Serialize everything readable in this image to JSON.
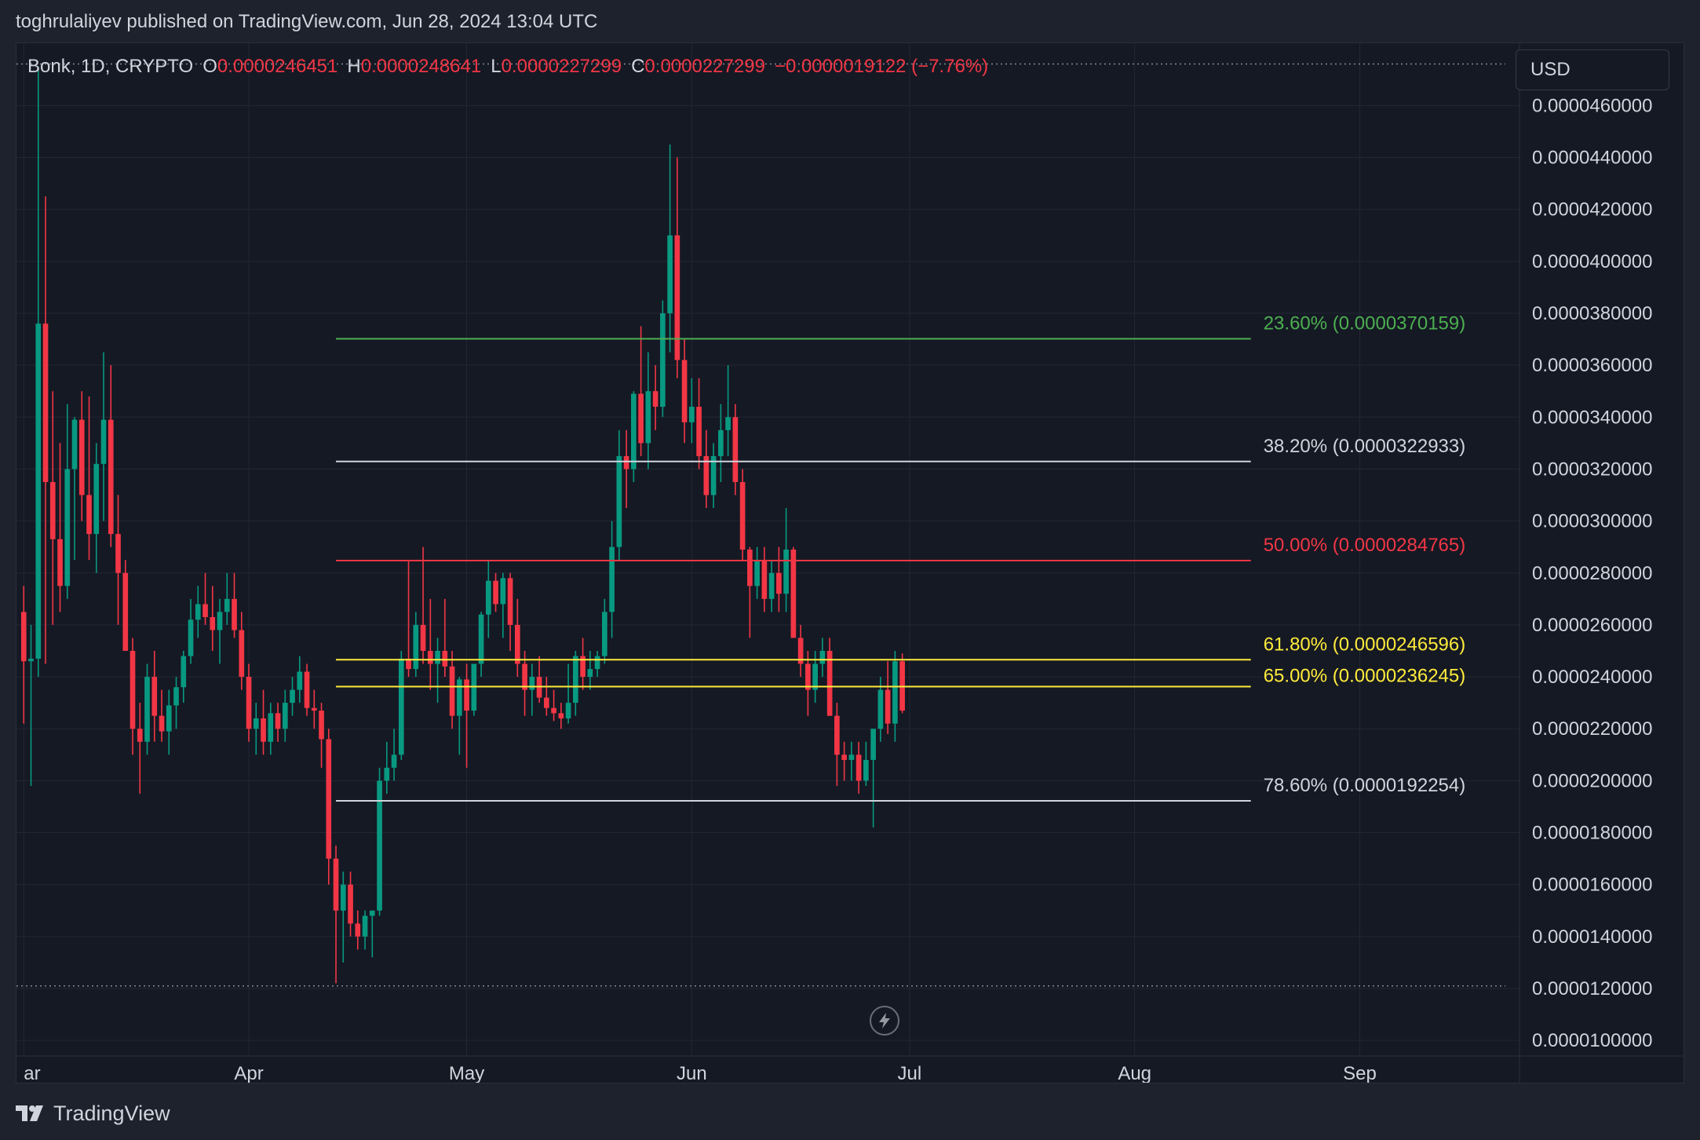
{
  "attribution": "toghrulaliyev published on TradingView.com, Jun 28, 2024 13:04 UTC",
  "legend": {
    "symbol": "Bonk, 1D, CRYPTO",
    "open_label": "O",
    "open": "0.0000246451",
    "high_label": "H",
    "high": "0.0000248641",
    "low_label": "L",
    "low": "0.0000227299",
    "close_label": "C",
    "close": "0.0000227299",
    "change": "−0.0000019122 (−7.76%)"
  },
  "currency": "USD",
  "brand": "TradingView",
  "replay_icon": "lightning-icon",
  "colors": {
    "background": "#151924",
    "up": "#089981",
    "down": "#f23645",
    "grid": "#232733",
    "axis_text": "#d1d4dc",
    "fib_23": "#4caf50",
    "fib_38": "#d1d4dc",
    "fib_50": "#f23645",
    "fib_618": "#ffeb3b",
    "fib_65": "#ffeb3b",
    "fib_786": "#d1d4dc"
  },
  "chart_data": {
    "type": "candlestick",
    "title": "Bonk, 1D, CRYPTO",
    "x_axis": {
      "tick_labels": [
        "ar",
        "Apr",
        "May",
        "Jun",
        "Jul",
        "Aug",
        "Sep"
      ],
      "tick_dates": [
        "2024-03-01",
        "2024-04-01",
        "2024-05-01",
        "2024-06-01",
        "2024-07-01",
        "2024-08-01",
        "2024-09-01"
      ],
      "range": [
        "2024-02-29",
        "2024-09-23"
      ]
    },
    "y_axis": {
      "ticks": [
        "0.0000100000",
        "0.0000120000",
        "0.0000140000",
        "0.0000160000",
        "0.0000180000",
        "0.0000200000",
        "0.0000220000",
        "0.0000240000",
        "0.0000260000",
        "0.0000280000",
        "0.0000300000",
        "0.0000320000",
        "0.0000340000",
        "0.0000360000",
        "0.0000380000",
        "0.0000400000",
        "0.0000420000",
        "0.0000440000",
        "0.0000460000"
      ],
      "range": [
        9.4e-06,
        4.84e-05
      ],
      "high_marker": 4.76e-05,
      "low_marker": 1.21e-05
    },
    "grid": true,
    "fibonacci": {
      "start_date": "2024-04-13",
      "end_date": "2024-08-17",
      "levels": [
        {
          "label": "23.60% (0.0000370159)",
          "value": 3.70159e-05,
          "color": "#4caf50"
        },
        {
          "label": "38.20% (0.0000322933)",
          "value": 3.22933e-05,
          "color": "#d1d4dc"
        },
        {
          "label": "50.00% (0.0000284765)",
          "value": 2.84765e-05,
          "color": "#f23645"
        },
        {
          "label": "61.80% (0.0000246596)",
          "value": 2.46596e-05,
          "color": "#ffeb3b"
        },
        {
          "label": "65.00% (0.0000236245)",
          "value": 2.36245e-05,
          "color": "#ffeb3b"
        },
        {
          "label": "78.60% (0.0000192254)",
          "value": 1.92254e-05,
          "color": "#d1d4dc"
        }
      ]
    },
    "candles": [
      {
        "date": "2024-03-01",
        "o": 26.5,
        "h": 27.5,
        "l": 22.2,
        "c": 24.6
      },
      {
        "date": "2024-03-02",
        "o": 24.6,
        "h": 26.0,
        "l": 19.8,
        "c": 24.7
      },
      {
        "date": "2024-03-03",
        "o": 24.7,
        "h": 47.5,
        "l": 24.0,
        "c": 37.6
      },
      {
        "date": "2024-03-04",
        "o": 37.6,
        "h": 42.5,
        "l": 24.5,
        "c": 31.5
      },
      {
        "date": "2024-03-05",
        "o": 31.5,
        "h": 35.0,
        "l": 26.0,
        "c": 29.3
      },
      {
        "date": "2024-03-06",
        "o": 29.3,
        "h": 33.0,
        "l": 26.5,
        "c": 27.5
      },
      {
        "date": "2024-03-07",
        "o": 27.5,
        "h": 34.5,
        "l": 27.0,
        "c": 32.0
      },
      {
        "date": "2024-03-08",
        "o": 32.0,
        "h": 34.0,
        "l": 28.5,
        "c": 33.9
      },
      {
        "date": "2024-03-09",
        "o": 33.9,
        "h": 35.0,
        "l": 30.0,
        "c": 31.0
      },
      {
        "date": "2024-03-10",
        "o": 31.0,
        "h": 34.8,
        "l": 28.5,
        "c": 29.5
      },
      {
        "date": "2024-03-11",
        "o": 29.5,
        "h": 33.0,
        "l": 28.0,
        "c": 32.2
      },
      {
        "date": "2024-03-12",
        "o": 32.2,
        "h": 36.5,
        "l": 30.0,
        "c": 33.9
      },
      {
        "date": "2024-03-13",
        "o": 33.9,
        "h": 36.0,
        "l": 29.0,
        "c": 29.5
      },
      {
        "date": "2024-03-14",
        "o": 29.5,
        "h": 31.0,
        "l": 26.0,
        "c": 28.0
      },
      {
        "date": "2024-03-15",
        "o": 28.0,
        "h": 28.5,
        "l": 25.0,
        "c": 25.0
      },
      {
        "date": "2024-03-16",
        "o": 25.0,
        "h": 25.5,
        "l": 21.0,
        "c": 22.0
      },
      {
        "date": "2024-03-17",
        "o": 22.0,
        "h": 23.0,
        "l": 19.5,
        "c": 21.5
      },
      {
        "date": "2024-03-18",
        "o": 21.5,
        "h": 24.5,
        "l": 21.0,
        "c": 24.0
      },
      {
        "date": "2024-03-19",
        "o": 24.0,
        "h": 25.0,
        "l": 21.5,
        "c": 22.5
      },
      {
        "date": "2024-03-20",
        "o": 22.5,
        "h": 23.5,
        "l": 21.5,
        "c": 21.9
      },
      {
        "date": "2024-03-21",
        "o": 21.9,
        "h": 23.5,
        "l": 21.0,
        "c": 22.9
      },
      {
        "date": "2024-03-22",
        "o": 22.9,
        "h": 24.0,
        "l": 22.0,
        "c": 23.6
      },
      {
        "date": "2024-03-23",
        "o": 23.6,
        "h": 25.0,
        "l": 23.0,
        "c": 24.8
      },
      {
        "date": "2024-03-24",
        "o": 24.8,
        "h": 27.0,
        "l": 24.5,
        "c": 26.2
      },
      {
        "date": "2024-03-25",
        "o": 26.2,
        "h": 27.5,
        "l": 25.5,
        "c": 26.8
      },
      {
        "date": "2024-03-26",
        "o": 26.8,
        "h": 28.0,
        "l": 26.0,
        "c": 26.3
      },
      {
        "date": "2024-03-27",
        "o": 26.3,
        "h": 27.5,
        "l": 25.0,
        "c": 25.8
      },
      {
        "date": "2024-03-28",
        "o": 25.8,
        "h": 27.0,
        "l": 24.5,
        "c": 26.5
      },
      {
        "date": "2024-03-29",
        "o": 26.5,
        "h": 28.0,
        "l": 26.0,
        "c": 27.0
      },
      {
        "date": "2024-03-30",
        "o": 27.0,
        "h": 28.0,
        "l": 25.5,
        "c": 25.8
      },
      {
        "date": "2024-03-31",
        "o": 25.8,
        "h": 26.5,
        "l": 23.5,
        "c": 24.0
      },
      {
        "date": "2024-04-01",
        "o": 24.0,
        "h": 24.5,
        "l": 21.5,
        "c": 22.0
      },
      {
        "date": "2024-04-02",
        "o": 22.0,
        "h": 23.0,
        "l": 21.0,
        "c": 22.4
      },
      {
        "date": "2024-04-03",
        "o": 22.4,
        "h": 23.5,
        "l": 21.0,
        "c": 21.5
      },
      {
        "date": "2024-04-04",
        "o": 21.5,
        "h": 23.0,
        "l": 21.0,
        "c": 22.6
      },
      {
        "date": "2024-04-05",
        "o": 22.6,
        "h": 23.0,
        "l": 21.5,
        "c": 22.0
      },
      {
        "date": "2024-04-06",
        "o": 22.0,
        "h": 23.5,
        "l": 21.5,
        "c": 23.0
      },
      {
        "date": "2024-04-07",
        "o": 23.0,
        "h": 24.0,
        "l": 22.5,
        "c": 23.5
      },
      {
        "date": "2024-04-08",
        "o": 23.5,
        "h": 24.8,
        "l": 23.0,
        "c": 24.2
      },
      {
        "date": "2024-04-09",
        "o": 24.2,
        "h": 24.5,
        "l": 22.5,
        "c": 22.8
      },
      {
        "date": "2024-04-10",
        "o": 22.8,
        "h": 23.5,
        "l": 22.0,
        "c": 22.7
      },
      {
        "date": "2024-04-11",
        "o": 22.7,
        "h": 23.0,
        "l": 20.5,
        "c": 21.6
      },
      {
        "date": "2024-04-12",
        "o": 21.6,
        "h": 22.0,
        "l": 16.0,
        "c": 17.0
      },
      {
        "date": "2024-04-13",
        "o": 17.0,
        "h": 17.5,
        "l": 12.2,
        "c": 15.0
      },
      {
        "date": "2024-04-14",
        "o": 15.0,
        "h": 16.5,
        "l": 13.0,
        "c": 16.0
      },
      {
        "date": "2024-04-15",
        "o": 16.0,
        "h": 16.5,
        "l": 14.0,
        "c": 14.5
      },
      {
        "date": "2024-04-16",
        "o": 14.5,
        "h": 15.0,
        "l": 13.5,
        "c": 14.0
      },
      {
        "date": "2024-04-17",
        "o": 14.0,
        "h": 15.0,
        "l": 13.5,
        "c": 14.8
      },
      {
        "date": "2024-04-18",
        "o": 14.8,
        "h": 15.0,
        "l": 13.2,
        "c": 15.0
      },
      {
        "date": "2024-04-19",
        "o": 15.0,
        "h": 20.5,
        "l": 14.8,
        "c": 20.0
      },
      {
        "date": "2024-04-20",
        "o": 20.0,
        "h": 21.5,
        "l": 19.5,
        "c": 20.5
      },
      {
        "date": "2024-04-21",
        "o": 20.5,
        "h": 22.0,
        "l": 20.0,
        "c": 21.0
      },
      {
        "date": "2024-04-22",
        "o": 21.0,
        "h": 25.0,
        "l": 20.8,
        "c": 24.7
      },
      {
        "date": "2024-04-23",
        "o": 24.7,
        "h": 28.5,
        "l": 24.0,
        "c": 24.3
      },
      {
        "date": "2024-04-24",
        "o": 24.3,
        "h": 26.5,
        "l": 24.0,
        "c": 26.0
      },
      {
        "date": "2024-04-25",
        "o": 26.0,
        "h": 29.0,
        "l": 24.5,
        "c": 25.0
      },
      {
        "date": "2024-04-26",
        "o": 25.0,
        "h": 27.0,
        "l": 23.5,
        "c": 24.5
      },
      {
        "date": "2024-04-27",
        "o": 24.5,
        "h": 25.5,
        "l": 23.0,
        "c": 25.0
      },
      {
        "date": "2024-04-28",
        "o": 25.0,
        "h": 27.0,
        "l": 24.0,
        "c": 24.4
      },
      {
        "date": "2024-04-29",
        "o": 24.4,
        "h": 25.0,
        "l": 22.0,
        "c": 22.5
      },
      {
        "date": "2024-04-30",
        "o": 22.5,
        "h": 24.0,
        "l": 21.0,
        "c": 23.9
      },
      {
        "date": "2024-05-01",
        "o": 23.9,
        "h": 24.5,
        "l": 20.5,
        "c": 22.7
      },
      {
        "date": "2024-05-02",
        "o": 22.7,
        "h": 24.5,
        "l": 22.5,
        "c": 24.5
      },
      {
        "date": "2024-05-03",
        "o": 24.5,
        "h": 26.5,
        "l": 24.0,
        "c": 26.4
      },
      {
        "date": "2024-05-04",
        "o": 26.4,
        "h": 28.5,
        "l": 25.5,
        "c": 27.7
      },
      {
        "date": "2024-05-05",
        "o": 27.7,
        "h": 28.0,
        "l": 26.5,
        "c": 26.8
      },
      {
        "date": "2024-05-06",
        "o": 26.8,
        "h": 28.0,
        "l": 25.5,
        "c": 27.8
      },
      {
        "date": "2024-05-07",
        "o": 27.8,
        "h": 28.0,
        "l": 25.0,
        "c": 26.0
      },
      {
        "date": "2024-05-08",
        "o": 26.0,
        "h": 27.0,
        "l": 24.0,
        "c": 24.5
      },
      {
        "date": "2024-05-09",
        "o": 24.5,
        "h": 25.0,
        "l": 22.5,
        "c": 23.5
      },
      {
        "date": "2024-05-10",
        "o": 23.5,
        "h": 24.5,
        "l": 22.5,
        "c": 24.0
      },
      {
        "date": "2024-05-11",
        "o": 24.0,
        "h": 24.8,
        "l": 23.0,
        "c": 23.2
      },
      {
        "date": "2024-05-12",
        "o": 23.2,
        "h": 24.0,
        "l": 22.5,
        "c": 22.8
      },
      {
        "date": "2024-05-13",
        "o": 22.8,
        "h": 23.5,
        "l": 22.3,
        "c": 22.6
      },
      {
        "date": "2024-05-14",
        "o": 22.6,
        "h": 23.0,
        "l": 22.0,
        "c": 22.4
      },
      {
        "date": "2024-05-15",
        "o": 22.4,
        "h": 24.5,
        "l": 22.2,
        "c": 23.0
      },
      {
        "date": "2024-05-16",
        "o": 23.0,
        "h": 25.0,
        "l": 22.5,
        "c": 24.8
      },
      {
        "date": "2024-05-17",
        "o": 24.8,
        "h": 25.5,
        "l": 23.5,
        "c": 24.0
      },
      {
        "date": "2024-05-18",
        "o": 24.0,
        "h": 25.0,
        "l": 23.5,
        "c": 24.3
      },
      {
        "date": "2024-05-19",
        "o": 24.3,
        "h": 25.0,
        "l": 24.0,
        "c": 24.8
      },
      {
        "date": "2024-05-20",
        "o": 24.8,
        "h": 27.0,
        "l": 24.5,
        "c": 26.5
      },
      {
        "date": "2024-05-21",
        "o": 26.5,
        "h": 30.0,
        "l": 25.5,
        "c": 29.0
      },
      {
        "date": "2024-05-22",
        "o": 29.0,
        "h": 33.5,
        "l": 28.5,
        "c": 32.5
      },
      {
        "date": "2024-05-23",
        "o": 32.5,
        "h": 33.5,
        "l": 30.5,
        "c": 32.0
      },
      {
        "date": "2024-05-24",
        "o": 32.0,
        "h": 35.0,
        "l": 31.5,
        "c": 34.9
      },
      {
        "date": "2024-05-25",
        "o": 34.9,
        "h": 37.5,
        "l": 32.5,
        "c": 33.0
      },
      {
        "date": "2024-05-26",
        "o": 33.0,
        "h": 36.5,
        "l": 32.0,
        "c": 35.0
      },
      {
        "date": "2024-05-27",
        "o": 35.0,
        "h": 36.0,
        "l": 33.5,
        "c": 34.4
      },
      {
        "date": "2024-05-28",
        "o": 34.4,
        "h": 38.5,
        "l": 34.0,
        "c": 38.0
      },
      {
        "date": "2024-05-29",
        "o": 38.0,
        "h": 44.5,
        "l": 36.5,
        "c": 41.0
      },
      {
        "date": "2024-05-30",
        "o": 41.0,
        "h": 44.0,
        "l": 35.5,
        "c": 36.2
      },
      {
        "date": "2024-05-31",
        "o": 36.2,
        "h": 37.0,
        "l": 33.0,
        "c": 33.8
      },
      {
        "date": "2024-06-01",
        "o": 33.8,
        "h": 35.5,
        "l": 33.0,
        "c": 34.4
      },
      {
        "date": "2024-06-02",
        "o": 34.4,
        "h": 35.5,
        "l": 32.0,
        "c": 32.5
      },
      {
        "date": "2024-06-03",
        "o": 32.5,
        "h": 33.5,
        "l": 30.5,
        "c": 31.0
      },
      {
        "date": "2024-06-04",
        "o": 31.0,
        "h": 33.0,
        "l": 30.5,
        "c": 32.5
      },
      {
        "date": "2024-06-05",
        "o": 32.5,
        "h": 34.5,
        "l": 31.5,
        "c": 33.5
      },
      {
        "date": "2024-06-06",
        "o": 33.5,
        "h": 36.0,
        "l": 32.5,
        "c": 34.0
      },
      {
        "date": "2024-06-07",
        "o": 34.0,
        "h": 34.5,
        "l": 31.0,
        "c": 31.5
      },
      {
        "date": "2024-06-08",
        "o": 31.5,
        "h": 32.0,
        "l": 28.5,
        "c": 28.9
      },
      {
        "date": "2024-06-09",
        "o": 28.9,
        "h": 29.0,
        "l": 25.5,
        "c": 27.5
      },
      {
        "date": "2024-06-10",
        "o": 27.5,
        "h": 29.0,
        "l": 27.0,
        "c": 28.5
      },
      {
        "date": "2024-06-11",
        "o": 28.5,
        "h": 29.0,
        "l": 26.5,
        "c": 27.0
      },
      {
        "date": "2024-06-12",
        "o": 27.0,
        "h": 28.5,
        "l": 26.5,
        "c": 28.0
      },
      {
        "date": "2024-06-13",
        "o": 28.0,
        "h": 29.0,
        "l": 26.5,
        "c": 27.2
      },
      {
        "date": "2024-06-14",
        "o": 27.2,
        "h": 30.5,
        "l": 26.5,
        "c": 28.9
      },
      {
        "date": "2024-06-15",
        "o": 28.9,
        "h": 29.0,
        "l": 25.5,
        "c": 25.5
      },
      {
        "date": "2024-06-16",
        "o": 25.5,
        "h": 26.0,
        "l": 24.0,
        "c": 24.5
      },
      {
        "date": "2024-06-17",
        "o": 24.5,
        "h": 25.0,
        "l": 22.5,
        "c": 23.5
      },
      {
        "date": "2024-06-18",
        "o": 23.5,
        "h": 25.0,
        "l": 23.0,
        "c": 24.5
      },
      {
        "date": "2024-06-19",
        "o": 24.5,
        "h": 25.5,
        "l": 24.0,
        "c": 25.0
      },
      {
        "date": "2024-06-20",
        "o": 25.0,
        "h": 25.5,
        "l": 22.5,
        "c": 22.5
      },
      {
        "date": "2024-06-21",
        "o": 22.5,
        "h": 23.0,
        "l": 19.8,
        "c": 21.0
      },
      {
        "date": "2024-06-22",
        "o": 21.0,
        "h": 21.5,
        "l": 20.0,
        "c": 20.8
      },
      {
        "date": "2024-06-23",
        "o": 20.8,
        "h": 21.5,
        "l": 20.0,
        "c": 21.0
      },
      {
        "date": "2024-06-24",
        "o": 21.0,
        "h": 21.5,
        "l": 19.5,
        "c": 20.0
      },
      {
        "date": "2024-06-25",
        "o": 20.0,
        "h": 21.5,
        "l": 19.8,
        "c": 20.8
      },
      {
        "date": "2024-06-26",
        "o": 20.8,
        "h": 22.0,
        "l": 18.2,
        "c": 22.0
      },
      {
        "date": "2024-06-27",
        "o": 22.0,
        "h": 24.0,
        "l": 21.5,
        "c": 23.5
      },
      {
        "date": "2024-06-28",
        "o": 23.5,
        "h": 24.6,
        "l": 21.8,
        "c": 22.2
      },
      {
        "date": "2024-06-29",
        "o": 22.2,
        "h": 25.0,
        "l": 21.5,
        "c": 24.6
      },
      {
        "date": "2024-06-30",
        "o": 24.6,
        "h": 24.9,
        "l": 22.6,
        "c": 22.7
      }
    ]
  }
}
